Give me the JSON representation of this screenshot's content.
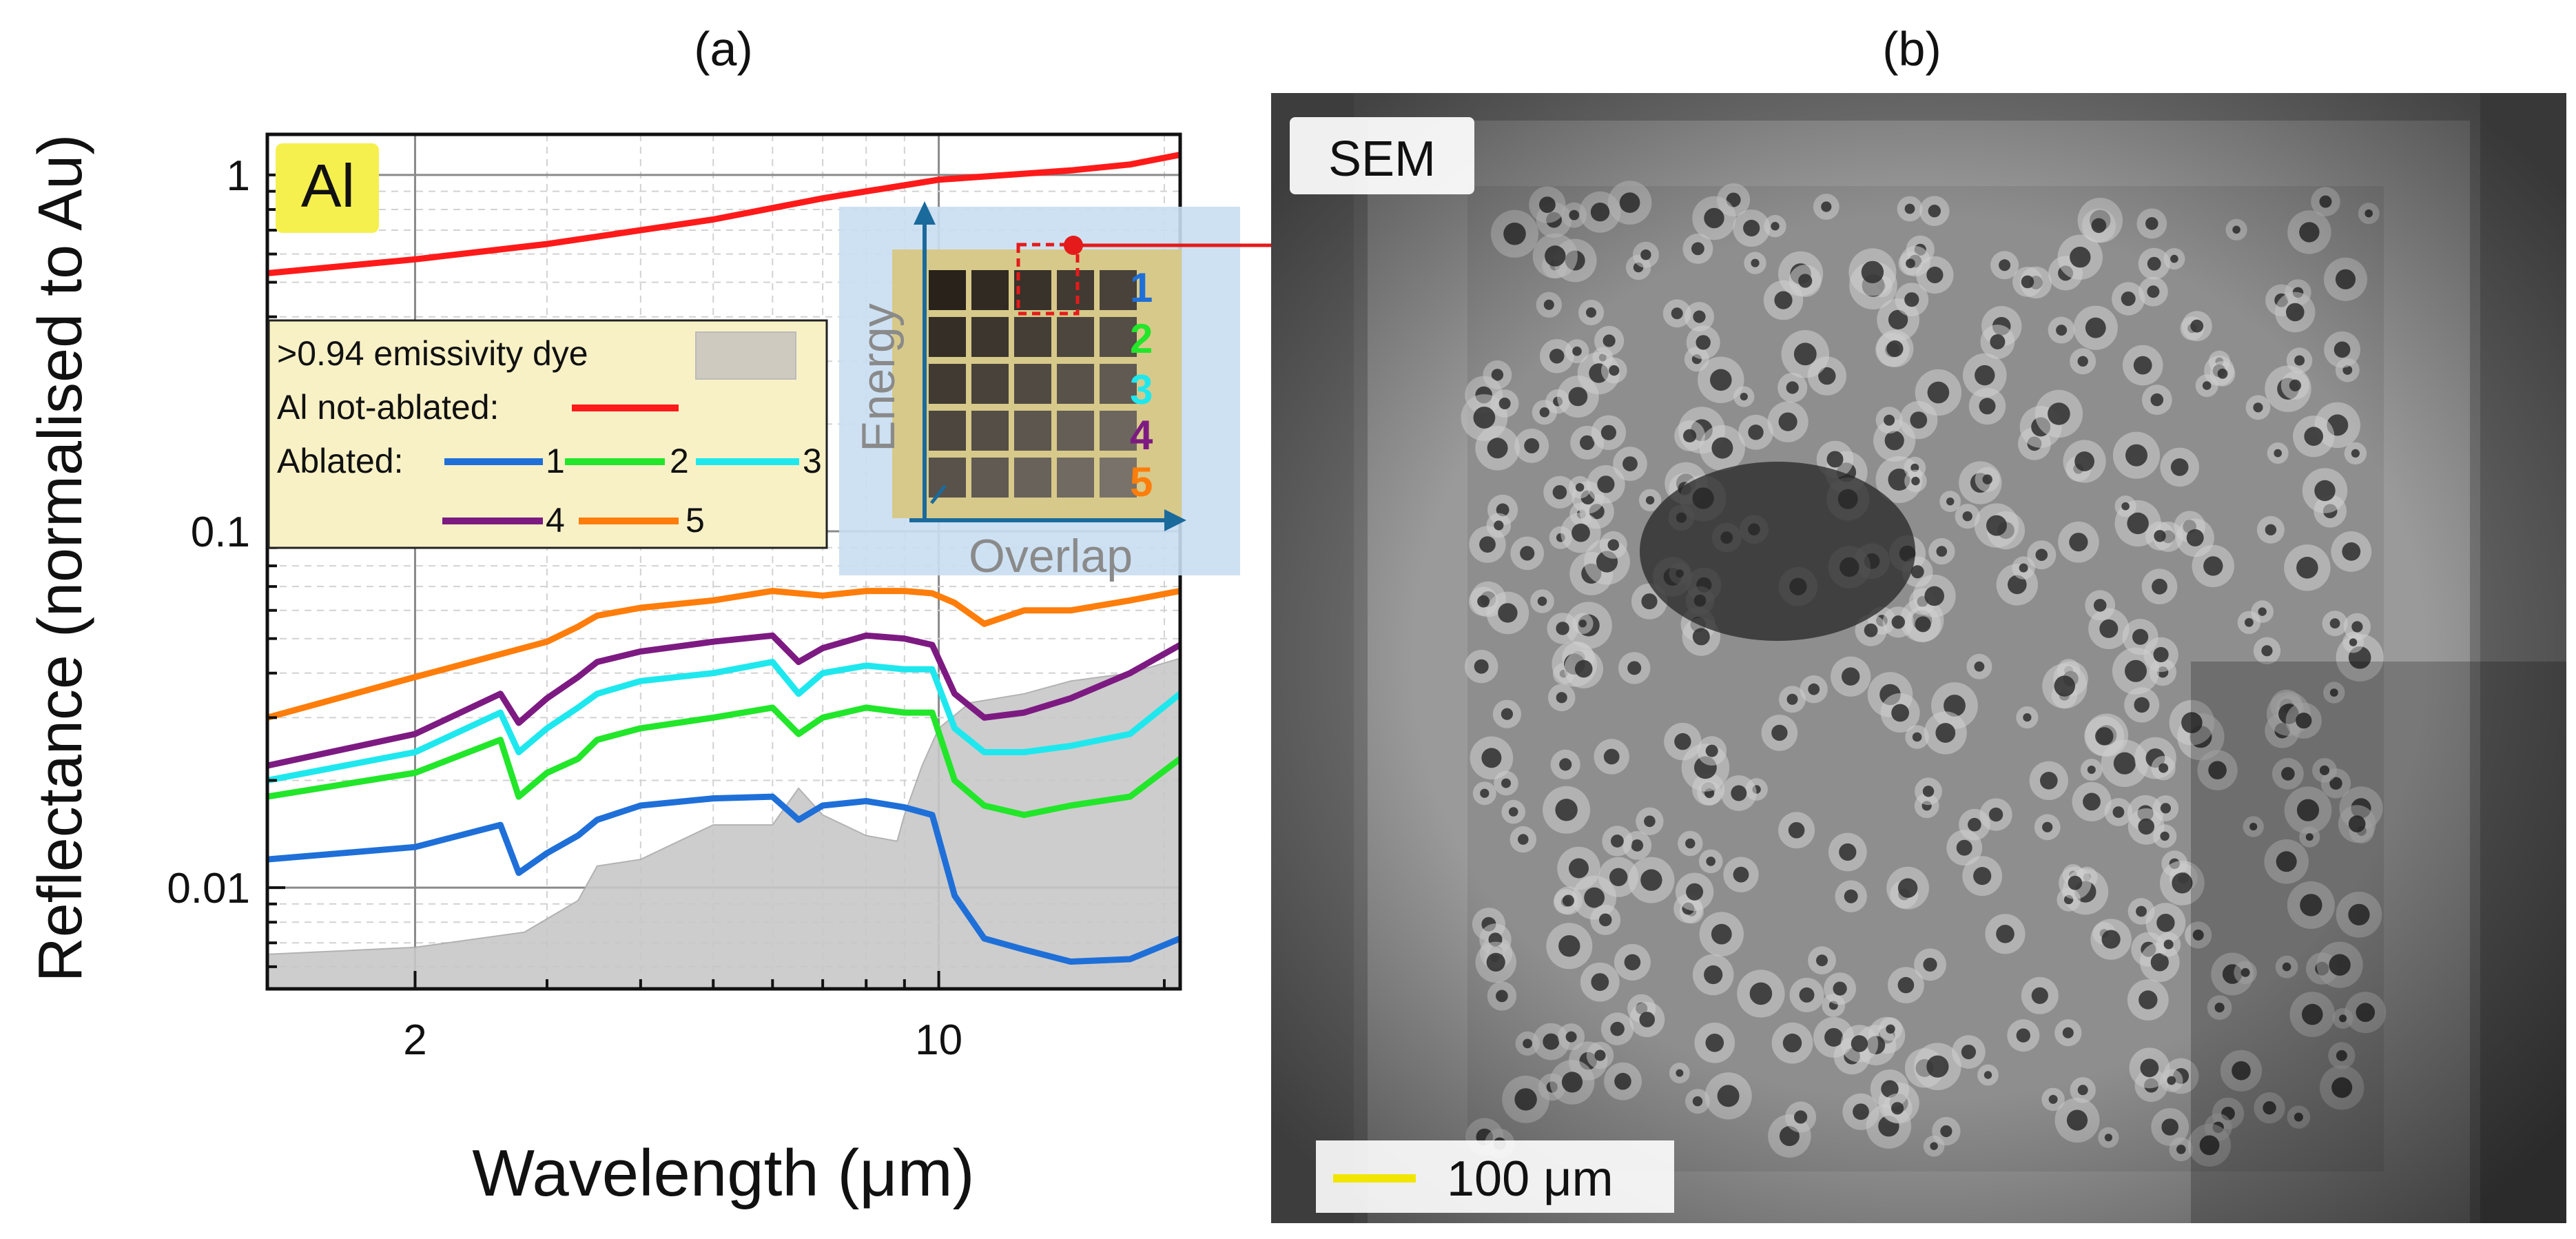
{
  "panel_labels": {
    "a": "(a)",
    "b": "(b)"
  },
  "chart_data": {
    "type": "line",
    "title": "",
    "xlabel": "Wavelength (μm)",
    "ylabel": "Reflectance (normalised to Au)",
    "xscale": "log",
    "yscale": "log",
    "xlim": [
      1.27,
      21
    ],
    "ylim": [
      0.0052,
      1.3
    ],
    "x_ticks": [
      2,
      10
    ],
    "x_tick_labels": [
      "2",
      "10"
    ],
    "y_ticks": [
      0.01,
      0.1,
      1
    ],
    "y_tick_labels": [
      "0.01",
      "0.1",
      "1"
    ],
    "grid": true,
    "material_badge": "Al",
    "legend": {
      "position": "left-middle",
      "dye_label": ">0.94 emissivity dye",
      "not_ablated_label": "Al not-ablated:",
      "ablated_label": "Ablated:",
      "numbers": [
        "1",
        "2",
        "3",
        "4",
        "5"
      ]
    },
    "colors": {
      "not_ablated": "#ff1a1a",
      "s1": "#1f6fd8",
      "s2": "#22e62a",
      "s3": "#1ee8ee",
      "s4": "#7d1a82",
      "s5": "#ff7d0a",
      "dye": "#c8c8c8",
      "legend_bg": "#f8f1c6",
      "badge_bg": "#f6f04e",
      "inset_bg": "#c9def2"
    },
    "series": [
      {
        "name": "Al not-ablated",
        "x": [
          1.27,
          2,
          3,
          5,
          7,
          10,
          15,
          18,
          21
        ],
        "y": [
          0.53,
          0.58,
          0.64,
          0.75,
          0.86,
          0.97,
          1.03,
          1.07,
          1.14
        ]
      },
      {
        "name": "1",
        "x": [
          1.27,
          2,
          2.6,
          2.75,
          3,
          3.3,
          3.5,
          4,
          5,
          6,
          6.5,
          7,
          8,
          9,
          9.8,
          10.5,
          11.5,
          13,
          15,
          18,
          21
        ],
        "y": [
          0.012,
          0.013,
          0.015,
          0.011,
          0.0125,
          0.014,
          0.0155,
          0.017,
          0.0178,
          0.018,
          0.0155,
          0.017,
          0.0175,
          0.0168,
          0.016,
          0.0095,
          0.0072,
          0.0067,
          0.0062,
          0.0063,
          0.0072
        ]
      },
      {
        "name": "2",
        "x": [
          1.27,
          2,
          2.6,
          2.75,
          3,
          3.3,
          3.5,
          4,
          5,
          6,
          6.5,
          7,
          8,
          9,
          9.8,
          10.5,
          11.5,
          13,
          15,
          18,
          21
        ],
        "y": [
          0.018,
          0.021,
          0.026,
          0.018,
          0.021,
          0.023,
          0.026,
          0.028,
          0.03,
          0.032,
          0.027,
          0.03,
          0.032,
          0.031,
          0.031,
          0.02,
          0.017,
          0.016,
          0.017,
          0.018,
          0.023
        ]
      },
      {
        "name": "3",
        "x": [
          1.27,
          2,
          2.6,
          2.75,
          3,
          3.3,
          3.5,
          4,
          5,
          6,
          6.5,
          7,
          8,
          9,
          9.8,
          10.5,
          11.5,
          13,
          15,
          18,
          21
        ],
        "y": [
          0.02,
          0.024,
          0.031,
          0.024,
          0.028,
          0.032,
          0.035,
          0.038,
          0.04,
          0.043,
          0.035,
          0.04,
          0.042,
          0.041,
          0.041,
          0.028,
          0.024,
          0.024,
          0.025,
          0.027,
          0.035
        ]
      },
      {
        "name": "4",
        "x": [
          1.27,
          2,
          2.6,
          2.75,
          3,
          3.3,
          3.5,
          4,
          5,
          6,
          6.5,
          7,
          8,
          9,
          9.8,
          10.5,
          11.5,
          13,
          15,
          18,
          21
        ],
        "y": [
          0.022,
          0.027,
          0.035,
          0.029,
          0.034,
          0.039,
          0.043,
          0.046,
          0.049,
          0.051,
          0.043,
          0.047,
          0.051,
          0.05,
          0.048,
          0.035,
          0.03,
          0.031,
          0.034,
          0.04,
          0.048
        ]
      },
      {
        "name": "5",
        "x": [
          1.27,
          2,
          3,
          3.3,
          3.5,
          4,
          5,
          6,
          7,
          8,
          9,
          9.8,
          10.5,
          11.5,
          13,
          15,
          18,
          21
        ],
        "y": [
          0.03,
          0.039,
          0.049,
          0.054,
          0.058,
          0.061,
          0.064,
          0.068,
          0.066,
          0.068,
          0.068,
          0.067,
          0.063,
          0.055,
          0.06,
          0.06,
          0.064,
          0.068
        ]
      },
      {
        "name": ">0.94 emissivity dye",
        "x": [
          1.27,
          2,
          2.8,
          3.3,
          3.5,
          4,
          5,
          6,
          6.5,
          7,
          8,
          8.8,
          9,
          9.5,
          10,
          11,
          13,
          15,
          18,
          21
        ],
        "y": [
          0.0065,
          0.0068,
          0.0075,
          0.0092,
          0.0115,
          0.012,
          0.015,
          0.015,
          0.019,
          0.016,
          0.014,
          0.0135,
          0.016,
          0.022,
          0.028,
          0.033,
          0.035,
          0.038,
          0.04,
          0.044
        ]
      }
    ]
  },
  "inset": {
    "y_axis_label": "Energy",
    "x_axis_label": "Overlap",
    "row_numbers": [
      "1",
      "2",
      "3",
      "4",
      "5"
    ]
  },
  "sem_panel": {
    "label": "SEM",
    "scale_bar_label": "100 μm",
    "scale_bar_color": "#f2e600"
  }
}
